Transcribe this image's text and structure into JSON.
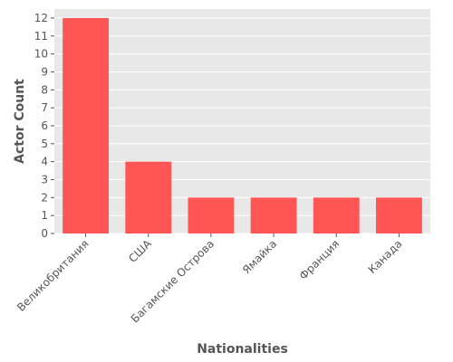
{
  "chart_data": {
    "type": "bar",
    "title": "",
    "xlabel": "Nationalities",
    "ylabel": "Actor Count",
    "categories": [
      "Великобритания",
      "США",
      "Багамские Острова",
      "Ямайка",
      "Франция",
      "Канада"
    ],
    "values": [
      12,
      4,
      2,
      2,
      2,
      2
    ],
    "ylim": [
      0,
      12.5
    ],
    "yticks": [
      0,
      1,
      2,
      3,
      4,
      5,
      6,
      7,
      8,
      9,
      10,
      11,
      12
    ],
    "grid": true,
    "legend": "none",
    "colors": {
      "bar": "#ff5555",
      "panel": "#e8e8e8",
      "grid": "#ffffff",
      "text": "#555555"
    }
  }
}
